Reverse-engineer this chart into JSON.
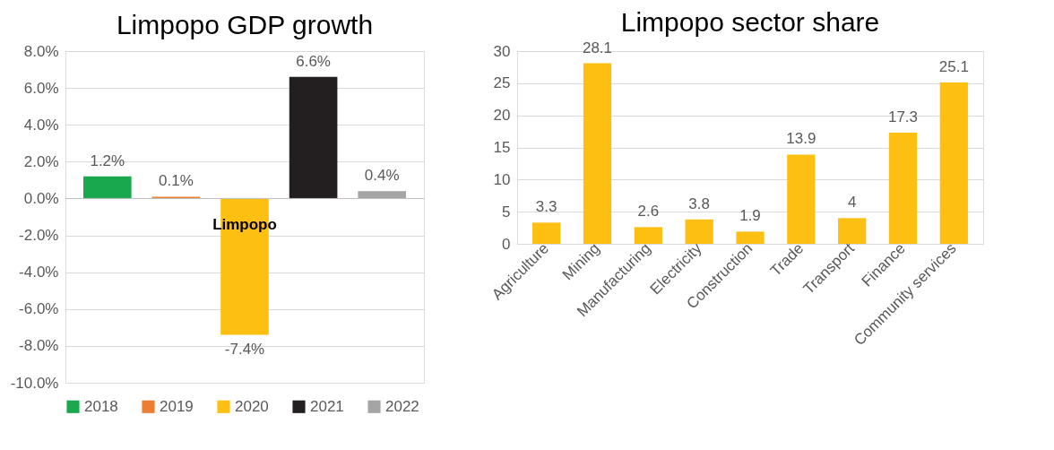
{
  "chart_data": [
    {
      "type": "bar",
      "title": "Limpopo GDP growth",
      "categories": [
        "Limpopo"
      ],
      "ylim": [
        -10,
        8
      ],
      "yticks": [
        {
          "value": -10,
          "label": "-10.0%"
        },
        {
          "value": -8,
          "label": "-8.0%"
        },
        {
          "value": -6,
          "label": "-6.0%"
        },
        {
          "value": -4,
          "label": "-4.0%"
        },
        {
          "value": -2,
          "label": "-2.0%"
        },
        {
          "value": 0,
          "label": "0.0%"
        },
        {
          "value": 2,
          "label": "2.0%"
        },
        {
          "value": 4,
          "label": "4.0%"
        },
        {
          "value": 6,
          "label": "6.0%"
        },
        {
          "value": 8,
          "label": "8.0%"
        }
      ],
      "grid": "y",
      "legend": "bottom",
      "series": [
        {
          "name": "2018",
          "color": "#1aa84e",
          "values": [
            1.2
          ],
          "value_labels": [
            "1.2%"
          ]
        },
        {
          "name": "2019",
          "color": "#ed7d31",
          "values": [
            0.1
          ],
          "value_labels": [
            "0.1%"
          ]
        },
        {
          "name": "2020",
          "color": "#fcbf12",
          "values": [
            -7.4
          ],
          "value_labels": [
            "-7.4%"
          ]
        },
        {
          "name": "2021",
          "color": "#231f20",
          "values": [
            6.6
          ],
          "value_labels": [
            "6.6%"
          ]
        },
        {
          "name": "2022",
          "color": "#a5a5a5",
          "values": [
            0.4
          ],
          "value_labels": [
            "0.4%"
          ]
        }
      ]
    },
    {
      "type": "bar",
      "title": "Limpopo sector share",
      "categories": [
        "Agriculture",
        "Mining",
        "Manufacturing",
        "Electricity",
        "Construction",
        "Trade",
        "Transport",
        "Finance",
        "Community services"
      ],
      "values": [
        3.3,
        28.1,
        2.6,
        3.8,
        1.9,
        13.9,
        4,
        17.3,
        25.1
      ],
      "color": "#fcbf12",
      "ylim": [
        0,
        30
      ],
      "yticks": [
        0,
        5,
        10,
        15,
        20,
        25,
        30
      ],
      "grid": "y",
      "data_labels": true
    }
  ]
}
